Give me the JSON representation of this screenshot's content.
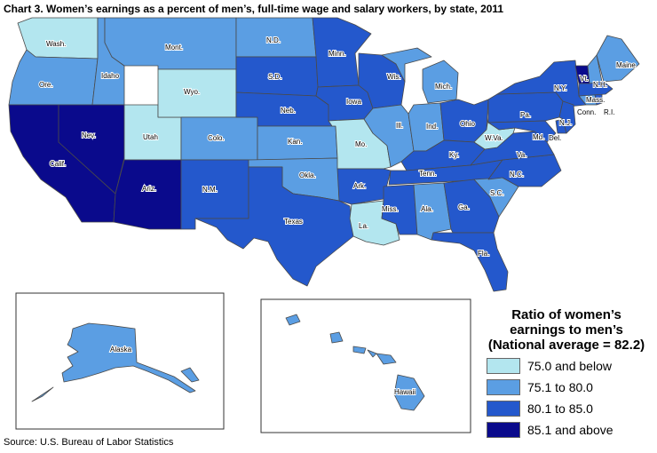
{
  "title": "Chart 3. Women’s earnings as a percent of men’s, full-time wage and salary workers, by state, 2011",
  "source": "Source: U.S. Bureau of Labor Statistics",
  "colors": {
    "c1": "#b3e6ef",
    "c2": "#5b9ee3",
    "c3": "#2458cc",
    "c4": "#0a0a8c",
    "border": "#4a4a4a"
  },
  "legend": {
    "title_line1": "Ratio of women’s",
    "title_line2": "earnings to men’s",
    "title_line3": "(National average = 82.2)",
    "items": [
      {
        "label": "75.0 and below",
        "class": "c1"
      },
      {
        "label": "75.1 to 80.0",
        "class": "c2"
      },
      {
        "label": "80.1 to 85.0",
        "class": "c3"
      },
      {
        "label": "85.1 and above",
        "class": "c4"
      }
    ]
  },
  "states": {
    "wash": {
      "label": "Wash.",
      "class": "c1"
    },
    "ore": {
      "label": "Ore.",
      "class": "c2"
    },
    "calif": {
      "label": "Calif.",
      "class": "c4"
    },
    "idaho": {
      "label": "Idaho",
      "class": "c2"
    },
    "nev": {
      "label": "Nev.",
      "class": "c4"
    },
    "utah": {
      "label": "Utah",
      "class": "c1"
    },
    "ariz": {
      "label": "Ariz.",
      "class": "c4"
    },
    "mont": {
      "label": "Mont.",
      "class": "c2"
    },
    "wyo": {
      "label": "Wyo.",
      "class": "c1"
    },
    "colo": {
      "label": "Colo.",
      "class": "c2"
    },
    "nm": {
      "label": "N.M.",
      "class": "c3"
    },
    "nd": {
      "label": "N.D.",
      "class": "c2"
    },
    "sd": {
      "label": "S.D.",
      "class": "c3"
    },
    "neb": {
      "label": "Neb.",
      "class": "c3"
    },
    "kan": {
      "label": "Kan.",
      "class": "c2"
    },
    "okla": {
      "label": "Okla.",
      "class": "c2"
    },
    "texas": {
      "label": "Texas",
      "class": "c3"
    },
    "minn": {
      "label": "Minn.",
      "class": "c3"
    },
    "iowa": {
      "label": "Iowa",
      "class": "c3"
    },
    "mo": {
      "label": "Mo.",
      "class": "c1"
    },
    "ark": {
      "label": "Ark.",
      "class": "c3"
    },
    "la": {
      "label": "La.",
      "class": "c1"
    },
    "wis": {
      "label": "Wis.",
      "class": "c3"
    },
    "ill": {
      "label": "Ill.",
      "class": "c2"
    },
    "mich": {
      "label": "Mich.",
      "class": "c2"
    },
    "ind": {
      "label": "Ind.",
      "class": "c2"
    },
    "ohio": {
      "label": "Ohio",
      "class": "c3"
    },
    "ky": {
      "label": "Ky.",
      "class": "c3"
    },
    "tenn": {
      "label": "Tenn.",
      "class": "c3"
    },
    "miss": {
      "label": "Miss.",
      "class": "c3"
    },
    "ala": {
      "label": "Ala.",
      "class": "c2"
    },
    "ga": {
      "label": "Ga.",
      "class": "c3"
    },
    "fla": {
      "label": "Fla.",
      "class": "c3"
    },
    "sc": {
      "label": "S.C.",
      "class": "c2"
    },
    "nc": {
      "label": "N.C.",
      "class": "c3"
    },
    "va": {
      "label": "Va.",
      "class": "c3"
    },
    "wva": {
      "label": "W.Va.",
      "class": "c1"
    },
    "pa": {
      "label": "Pa.",
      "class": "c3"
    },
    "ny": {
      "label": "N.Y.",
      "class": "c3"
    },
    "md": {
      "label": "Md.",
      "class": "c3"
    },
    "del": {
      "label": "Del.",
      "class": "c3"
    },
    "nj": {
      "label": "N.J.",
      "class": "c3"
    },
    "conn": {
      "label": "Conn.",
      "class": "c2"
    },
    "ri": {
      "label": "R.I.",
      "class": "c3"
    },
    "mass": {
      "label": "Mass.",
      "class": "c3"
    },
    "vt": {
      "label": "Vt.",
      "class": "c4"
    },
    "nh": {
      "label": "N.H.",
      "class": "c2"
    },
    "maine": {
      "label": "Maine",
      "class": "c2"
    },
    "alaska": {
      "label": "Alaska",
      "class": "c2"
    },
    "hawaii": {
      "label": "Hawaii",
      "class": "c2"
    }
  }
}
